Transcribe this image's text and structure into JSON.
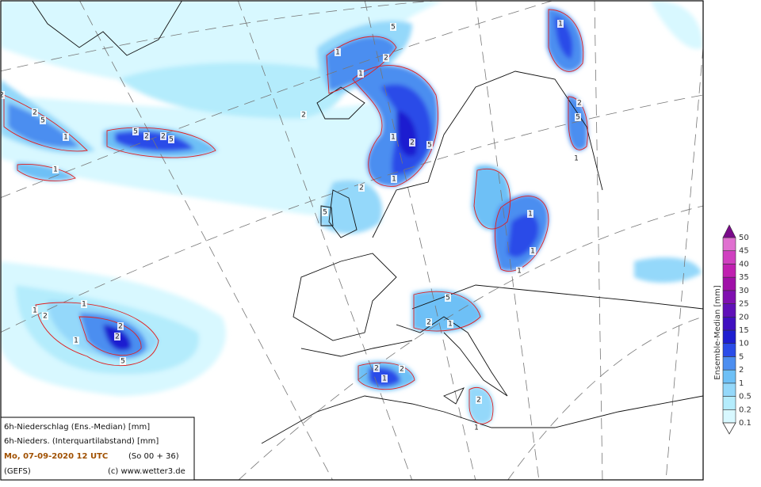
{
  "legend_box": {
    "line1": "6h-Niederschlag (Ens.-Median) [mm]",
    "line2": "6h-Nieders. (Interquartilabstand) [mm]",
    "date": "Mo, 07-09-2020  12 UTC",
    "run": "(So 00 + 36)",
    "model": "(GEFS)",
    "copyright": "(c) www.wetter3.de"
  },
  "colorbar": {
    "title": "Ensemble-Median [mm]",
    "levels": [
      0.1,
      0.2,
      0.5,
      1,
      2,
      5,
      10,
      15,
      20,
      25,
      30,
      35,
      40,
      45,
      50
    ],
    "colors": [
      "#d8f8ff",
      "#b4ecfc",
      "#94d8fa",
      "#6ec0f6",
      "#4c8ef0",
      "#2a4ce8",
      "#1e1ed0",
      "#4010c0",
      "#6010b8",
      "#8010b0",
      "#a010a8",
      "#c020b0",
      "#d040c0",
      "#e070d0"
    ],
    "top_color": "#7a0a8a",
    "bottom_color": "#ffffff"
  },
  "contour_labels": [
    1,
    2,
    1,
    2,
    5,
    1,
    2,
    5,
    2,
    2,
    5,
    5,
    2,
    1,
    1,
    2,
    5,
    1,
    1,
    2,
    1,
    2,
    5,
    1,
    2,
    5,
    2,
    1,
    1,
    1,
    1,
    2,
    5,
    1,
    2,
    1,
    2,
    5,
    2,
    1,
    2,
    1
  ]
}
